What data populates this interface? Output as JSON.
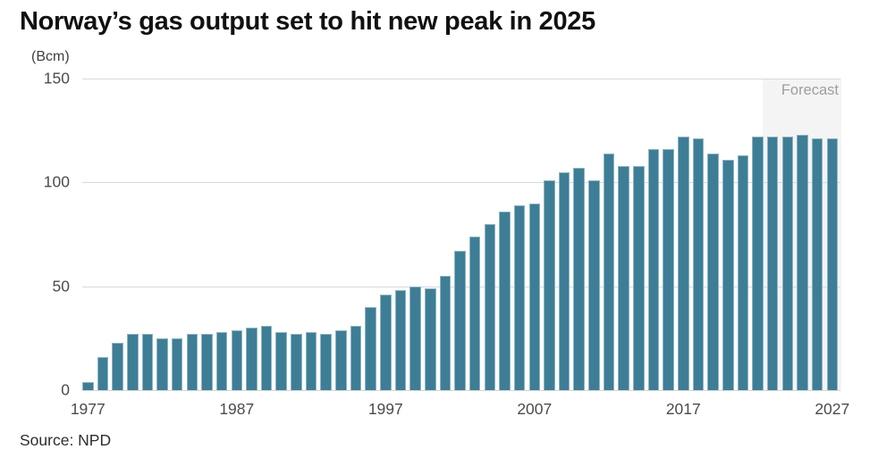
{
  "title": "Norway’s gas output set to hit new peak in 2025",
  "unit_label": "(Bcm)",
  "forecast_label": "Forecast",
  "source": "Source: NPD",
  "colors": {
    "bar": "#3d7e96",
    "forecast_band": "#f4f4f4",
    "gridline": "#d9d9d9",
    "title_text": "#111111",
    "axis_text": "#4b4b4b",
    "forecast_text": "#9e9e9e"
  },
  "chart_data": {
    "type": "bar",
    "title": "Norway’s gas output set to hit new peak in 2025",
    "xlabel": "",
    "ylabel": "(Bcm)",
    "ylim": [
      0,
      150
    ],
    "yticks": [
      0,
      50,
      100,
      150
    ],
    "xticks": [
      1977,
      1987,
      1997,
      2007,
      2017,
      2027
    ],
    "grid": true,
    "forecast_start_year": 2023,
    "forecast_region_label": "Forecast",
    "years": [
      1977,
      1978,
      1979,
      1980,
      1981,
      1982,
      1983,
      1984,
      1985,
      1986,
      1987,
      1988,
      1989,
      1990,
      1991,
      1992,
      1993,
      1994,
      1995,
      1996,
      1997,
      1998,
      1999,
      2000,
      2001,
      2002,
      2003,
      2004,
      2005,
      2006,
      2007,
      2008,
      2009,
      2010,
      2011,
      2012,
      2013,
      2014,
      2015,
      2016,
      2017,
      2018,
      2019,
      2020,
      2021,
      2022,
      2023,
      2024,
      2025,
      2026,
      2027
    ],
    "values": [
      4,
      16,
      23,
      27,
      27,
      25,
      25,
      27,
      27,
      28,
      29,
      30,
      31,
      28,
      27,
      28,
      27,
      29,
      31,
      40,
      46,
      48,
      50,
      49,
      55,
      67,
      74,
      80,
      86,
      89,
      90,
      101,
      105,
      107,
      101,
      114,
      108,
      108,
      116,
      116,
      122,
      121,
      114,
      111,
      113,
      122,
      122,
      122,
      123,
      121,
      121
    ]
  }
}
